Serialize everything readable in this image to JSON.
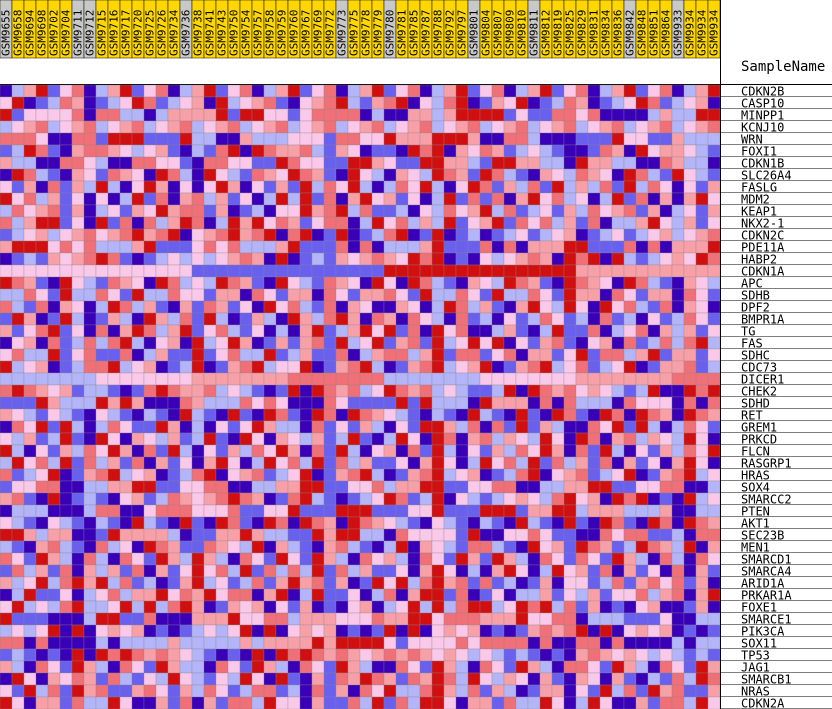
{
  "chart_data": {
    "type": "heatmap",
    "header_label": "SampleName",
    "samples": [
      {
        "name": "GSM9655",
        "group": "gray"
      },
      {
        "name": "GSM9658",
        "group": "gold"
      },
      {
        "name": "GSM9694",
        "group": "gold"
      },
      {
        "name": "GSM9698",
        "group": "gold"
      },
      {
        "name": "GSM9702",
        "group": "gold"
      },
      {
        "name": "GSM9704",
        "group": "gold"
      },
      {
        "name": "GSM9711",
        "group": "gray"
      },
      {
        "name": "GSM9712",
        "group": "gray"
      },
      {
        "name": "GSM9715",
        "group": "gold"
      },
      {
        "name": "GSM9716",
        "group": "gold"
      },
      {
        "name": "GSM9717",
        "group": "gold"
      },
      {
        "name": "GSM9720",
        "group": "gold"
      },
      {
        "name": "GSM9725",
        "group": "gold"
      },
      {
        "name": "GSM9726",
        "group": "gold"
      },
      {
        "name": "GSM9734",
        "group": "gold"
      },
      {
        "name": "GSM9736",
        "group": "gray"
      },
      {
        "name": "GSM9738",
        "group": "gold"
      },
      {
        "name": "GSM9741",
        "group": "gold"
      },
      {
        "name": "GSM9743",
        "group": "gold"
      },
      {
        "name": "GSM9750",
        "group": "gold"
      },
      {
        "name": "GSM9754",
        "group": "gold"
      },
      {
        "name": "GSM9757",
        "group": "gold"
      },
      {
        "name": "GSM9758",
        "group": "gold"
      },
      {
        "name": "GSM9759",
        "group": "gold"
      },
      {
        "name": "GSM9760",
        "group": "gold"
      },
      {
        "name": "GSM9767",
        "group": "gold"
      },
      {
        "name": "GSM9769",
        "group": "gold"
      },
      {
        "name": "GSM9772",
        "group": "gold"
      },
      {
        "name": "GSM9773",
        "group": "gray"
      },
      {
        "name": "GSM9775",
        "group": "gold"
      },
      {
        "name": "GSM9778",
        "group": "gold"
      },
      {
        "name": "GSM9779",
        "group": "gold"
      },
      {
        "name": "GSM9780",
        "group": "gray"
      },
      {
        "name": "GSM9781",
        "group": "gold"
      },
      {
        "name": "GSM9785",
        "group": "gold"
      },
      {
        "name": "GSM9787",
        "group": "gold"
      },
      {
        "name": "GSM9788",
        "group": "gold"
      },
      {
        "name": "GSM9792",
        "group": "gold"
      },
      {
        "name": "GSM9797",
        "group": "gold"
      },
      {
        "name": "GSM9801",
        "group": "gray"
      },
      {
        "name": "GSM9804",
        "group": "gold"
      },
      {
        "name": "GSM9807",
        "group": "gold"
      },
      {
        "name": "GSM9809",
        "group": "gold"
      },
      {
        "name": "GSM9810",
        "group": "gold"
      },
      {
        "name": "GSM9811",
        "group": "gray"
      },
      {
        "name": "GSM9812",
        "group": "gold"
      },
      {
        "name": "GSM9819",
        "group": "gold"
      },
      {
        "name": "GSM9825",
        "group": "gold"
      },
      {
        "name": "GSM9829",
        "group": "gold"
      },
      {
        "name": "GSM9831",
        "group": "gold"
      },
      {
        "name": "GSM9834",
        "group": "gold"
      },
      {
        "name": "GSM9836",
        "group": "gold"
      },
      {
        "name": "GSM9842",
        "group": "gray"
      },
      {
        "name": "GSM9848",
        "group": "gold"
      },
      {
        "name": "GSM9851",
        "group": "gold"
      },
      {
        "name": "GSM9864",
        "group": "gold"
      },
      {
        "name": "GSM9933",
        "group": "gray"
      },
      {
        "name": "GSM9934",
        "group": "gold"
      },
      {
        "name": "GSM9934",
        "group": "gold"
      },
      {
        "name": "GSM9934",
        "group": "gold"
      }
    ],
    "genes": [
      "CDKN2B",
      "CASP10",
      "MINPP1",
      "KCNJ10",
      "WRN",
      "FOXI1",
      "CDKN1B",
      "SLC26A4",
      "FASLG",
      "MDM2",
      "KEAP1",
      "NKX2-1",
      "CDKN2C",
      "PDE11A",
      "HABP2",
      "CDKN1A",
      "APC",
      "SDHB",
      "DPF2",
      "BMPR1A",
      "TG",
      "FAS",
      "SDHC",
      "CDC73",
      "DICER1",
      "CHEK2",
      "SDHD",
      "RET",
      "GREM1",
      "PRKCD",
      "FLCN",
      "RASGRP1",
      "HRAS",
      "SOX4",
      "SMARCC2",
      "PTEN",
      "AKT1",
      "SEC23B",
      "MEN1",
      "SMARCD1",
      "SMARCA4",
      "ARID1A",
      "PRKAR1A",
      "FOXE1",
      "SMARCE1",
      "PIK3CA",
      "SOX11",
      "TP53",
      "JAG1",
      "SMARCB1",
      "NRAS",
      "CDKN2A"
    ],
    "value_scale": [
      -3,
      -2,
      -1,
      0,
      1,
      2,
      3
    ],
    "value_rule": "v = ((g*7 + s*13 + floor(g*s/3)*5 + (g^s)*3) mod 7) - 3, for gene index g and sample index s",
    "color_scale": {
      "-3": "#3a00b8",
      "-2": "#6a60ee",
      "-1": "#b4b4f8",
      "0": "#fac8e8",
      "1": "#f8a0a8",
      "2": "#f07078",
      "3": "#d01010"
    },
    "header_colors": {
      "gold": "#ffd700",
      "gray": "#c8c8c8"
    }
  }
}
